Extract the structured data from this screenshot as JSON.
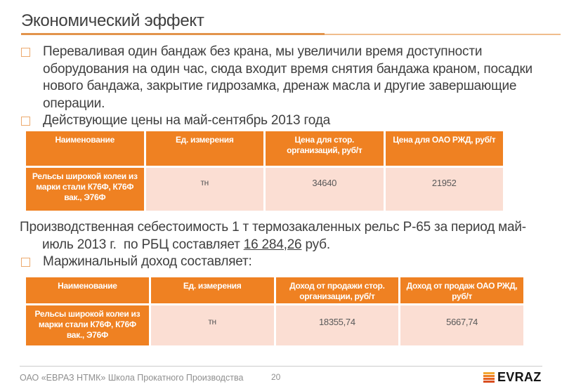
{
  "slide": {
    "title": "Экономический эффект",
    "bullet1_lines": [
      "Переваливая один бандаж без крана, мы увеличили время доступности",
      "оборудования на один час, сюда входит время снятия бандажа краном, посадки",
      "нового бандажа, закрытие гидрозамка, дренаж масла и другие завершающие",
      "операции."
    ],
    "bullet2": "Действующие цены на май-сентябрь 2013 года",
    "paragraph": {
      "line1": "Производственная себестоимость 1 т термозакаленных рельс Р-65 за период май-",
      "line2_prefix": "июль 2013 г.  по РБЦ составляет ",
      "line2_underlined": "16 284,26",
      "line2_suffix": " руб."
    },
    "bullet3": "Маржинальный доход составляет:"
  },
  "table1": {
    "headers": [
      "Наименование",
      "Ед. измерения",
      "Цена для стор. организаций, руб/т",
      "Цена для ОАО РЖД, руб/т"
    ],
    "row": {
      "name": "Рельсы широкой колеи из марки стали К76Ф, К76Ф вак., Э76Ф",
      "unit": "тн",
      "price_third_party": "34640",
      "price_rzd": "21952"
    }
  },
  "table2": {
    "headers": [
      "Наименование",
      "Ед. измерения",
      "Доход от продажи стор. организации, руб/т",
      "Доход от продаж ОАО РЖД, руб/т"
    ],
    "row": {
      "name": "Рельсы широкой колеи из марки стали К76Ф, К76Ф вак., Э76Ф",
      "unit": "тн",
      "income_third_party": "18355,74",
      "income_rzd": "5667,74"
    }
  },
  "footer": {
    "left_text": "ОАО «ЕВРАЗ НТМК» Школа Прокатного Производства",
    "page_number": "20",
    "logo_text": "EVRAZ"
  },
  "colors": {
    "accent_orange": "#ef8122",
    "table_row_pink": "#fbded3",
    "title_rule_orange": "#e2944c",
    "bullet_outline": "#edaa6e",
    "footer_gray": "#8f8f8f",
    "logo_bar_1": "#f2a833",
    "logo_bar_2": "#ee7f22",
    "logo_bar_3": "#e6621f",
    "logo_bar_4": "#d94f21"
  }
}
